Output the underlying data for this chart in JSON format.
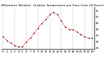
{
  "title": "Milwaukee Weather  Outdoor Temperature per Hour (Last 24 Hours)",
  "hours": [
    0,
    1,
    2,
    3,
    4,
    5,
    6,
    7,
    8,
    9,
    10,
    11,
    12,
    13,
    14,
    15,
    16,
    17,
    18,
    19,
    20,
    21,
    22,
    23
  ],
  "temps": [
    34,
    31,
    29,
    27,
    26,
    26,
    30,
    33,
    37,
    41,
    45,
    48,
    52,
    54,
    52,
    47,
    42,
    40,
    40,
    38,
    36,
    34,
    33,
    33
  ],
  "line_color": "#ff0000",
  "marker_color": "#000000",
  "bg_color": "#ffffff",
  "grid_color": "#999999",
  "title_color": "#000000",
  "ylim": [
    24,
    58
  ],
  "yticks": [
    25,
    30,
    35,
    40,
    45,
    50,
    55
  ],
  "title_fontsize": 3.2,
  "tick_fontsize": 2.8,
  "vgrid_positions": [
    0,
    3,
    6,
    9,
    12,
    15,
    18,
    21,
    23
  ]
}
